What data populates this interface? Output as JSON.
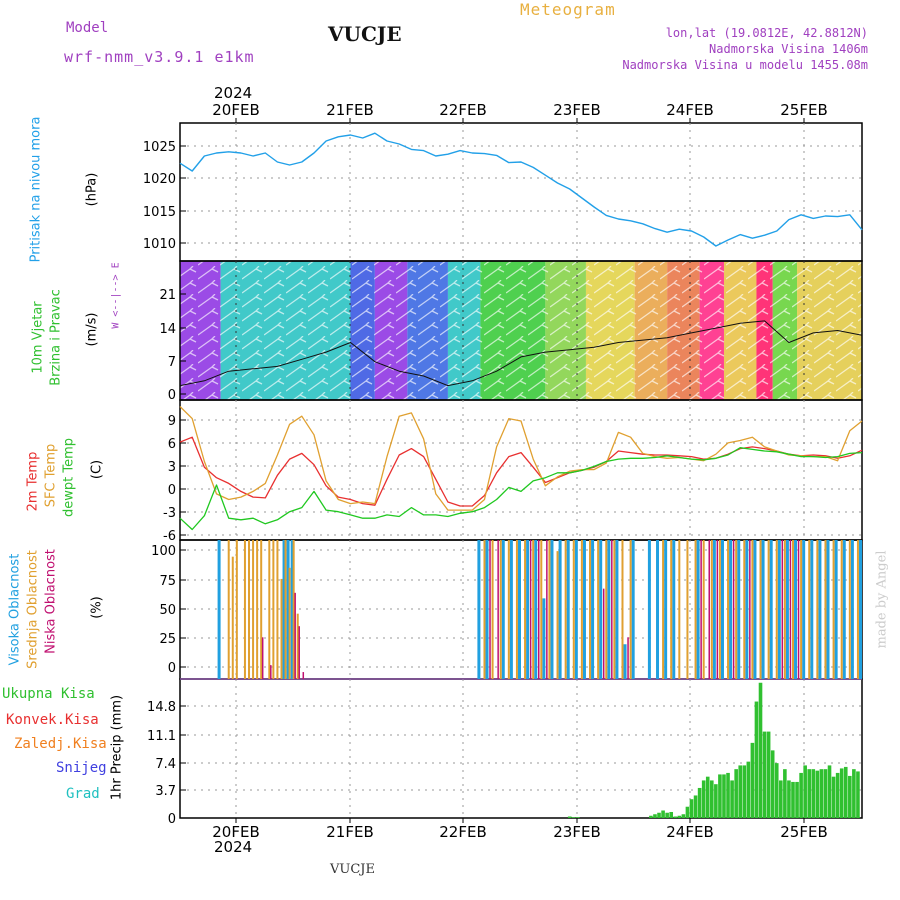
{
  "header": {
    "model_label": "Model",
    "model_name": "wrf-nmm_v3.9.1 e1km",
    "station": "VUCJE",
    "meteogram": "Meteogram",
    "lonlat": "lon,lat (19.0812E, 42.8812N)",
    "elevation": "Nadmorska Visina 1406m",
    "model_elevation": "Nadmorska Visina u modelu 1455.08m",
    "credit": "made by Angel",
    "footer_station": "VUCJE"
  },
  "time_axis": {
    "year": "2024",
    "days": [
      "20FEB",
      "21FEB",
      "22FEB",
      "23FEB",
      "24FEB",
      "25FEB"
    ]
  },
  "panel_labels": {
    "pressure": "Pritisak na nivou mora",
    "pressure_unit": "(hPa)",
    "wind1": "10m Vjetar",
    "wind2": "Brzina i Pravac",
    "wind_unit": "(m/s)",
    "compass": "W <--|--> E",
    "temp1": "2m Temp",
    "temp2": "SFC Temp",
    "temp3": "dewpt Temp",
    "temp_unit": "(C)",
    "cloud1": "Visoka Oblacnost",
    "cloud2": "Srednja Oblacnost",
    "cloud3": "Niska Oblacnost",
    "cloud_unit": "(%)",
    "precip_total": "Ukupna Kisa",
    "precip_conv": "Konvek.Kisa",
    "precip_frz": "Zaledj.Kisa",
    "precip_snow": "Snijeg",
    "precip_grad": "Grad",
    "precip_unit": "1hr Precip (mm)"
  },
  "colors": {
    "pressure": "#22a0e8",
    "temp2m": "#e83030",
    "sfc": "#e0a030",
    "dewpt": "#20c820",
    "cloud_high": "#20a0e0",
    "cloud_mid": "#e0a030",
    "cloud_low": "#c01070",
    "precip": "#30c030",
    "label_green": "#30c030",
    "label_red": "#e83030",
    "label_orange": "#f08020",
    "label_blue": "#4040e0",
    "label_cyan": "#20c0c0",
    "label_purple": "#a040c0",
    "label_gold": "#e8b040"
  },
  "chart_data": [
    {
      "type": "line",
      "name": "pressure",
      "ylim": [
        1006,
        1029
      ],
      "yticks": [
        "1010",
        "1015",
        "1020",
        "1025"
      ],
      "x_hours": [
        0,
        3,
        6,
        9,
        12,
        15,
        18,
        21,
        24,
        27,
        30,
        33,
        36,
        39,
        42,
        45,
        48,
        51,
        54,
        57,
        60,
        63,
        66,
        69,
        72,
        75,
        78,
        81,
        84,
        87,
        90,
        93,
        96,
        99,
        102,
        105,
        108,
        111,
        114,
        117,
        120,
        123,
        126,
        129,
        132,
        135,
        138,
        141,
        144,
        147,
        150,
        153,
        156,
        159,
        162,
        165,
        168
      ],
      "values": [
        1022.3,
        1021,
        1023.5,
        1024,
        1024.2,
        1024,
        1023.5,
        1024,
        1022.5,
        1022,
        1022.5,
        1024,
        1026,
        1026.7,
        1027,
        1026.5,
        1027.3,
        1026,
        1025.5,
        1024.6,
        1024.4,
        1023.5,
        1023.8,
        1024.4,
        1024,
        1023.9,
        1023.6,
        1022.4,
        1022.5,
        1021.6,
        1020.3,
        1019,
        1018,
        1016.5,
        1015,
        1013.6,
        1013,
        1012.7,
        1012.2,
        1011.4,
        1010.8,
        1011.3,
        1011,
        1010,
        1008.5,
        1009.5,
        1010.4,
        1009.8,
        1010.3,
        1011,
        1012.9,
        1013.7,
        1013.1,
        1013.5,
        1013.4,
        1013.7,
        1011.2
      ]
    },
    {
      "type": "line",
      "name": "wind speed",
      "ylim": [
        -1,
        28
      ],
      "yticks": [
        "0",
        "7",
        "14",
        "21"
      ],
      "x_hours": [
        0,
        6,
        12,
        18,
        24,
        30,
        36,
        42,
        48,
        54,
        60,
        66,
        72,
        78,
        84,
        90,
        96,
        102,
        108,
        114,
        120,
        126,
        132,
        138,
        144,
        150,
        156,
        162,
        168
      ],
      "values": [
        2,
        3,
        5,
        5.5,
        6,
        7.5,
        9,
        11,
        7,
        5,
        4,
        2,
        3,
        5,
        8,
        9,
        9.5,
        10,
        11,
        11.5,
        12,
        13,
        14,
        15,
        15.5,
        11,
        13,
        13.5,
        12.5
      ]
    },
    {
      "type": "line",
      "name": "temperature",
      "ylim": [
        -6.5,
        10.8
      ],
      "yticks": [
        "-6",
        "-3",
        "0",
        "3",
        "6",
        "9"
      ],
      "x_hours": [
        0,
        3,
        6,
        9,
        12,
        15,
        18,
        21,
        24,
        27,
        30,
        33,
        36,
        39,
        42,
        45,
        48,
        51,
        54,
        57,
        60,
        63,
        66,
        69,
        72,
        75,
        78,
        81,
        84,
        87,
        90,
        93,
        96,
        99,
        102,
        105,
        108,
        111,
        114,
        117,
        120,
        123,
        126,
        129,
        132,
        135,
        138,
        141,
        144,
        147,
        150,
        153,
        156,
        159,
        162,
        165,
        168
      ],
      "series": [
        {
          "name": "2m Temp",
          "values": [
            5.6,
            6.2,
            2.5,
            1.2,
            0.5,
            -0.5,
            -1.2,
            -1.3,
            1.5,
            3.5,
            4.2,
            2.8,
            0.2,
            -1.2,
            -1.5,
            -2,
            -2.2,
            1,
            4,
            4.8,
            3.8,
            1,
            -1.8,
            -2.3,
            -2.3,
            -1,
            1.8,
            3.8,
            4.3,
            2.5,
            0.6,
            1.2,
            1.8,
            2.1,
            2.5,
            3.2,
            4.5,
            4.3,
            4.1,
            4,
            4,
            3.9,
            3.8,
            3.5,
            3.6,
            4.1,
            4.8,
            5,
            4.8,
            4.5,
            4.1,
            3.9,
            4,
            3.9,
            3.6,
            3.9,
            4.6
          ]
        },
        {
          "name": "SFC Temp",
          "values": [
            10,
            8.5,
            3.2,
            -0.8,
            -1.5,
            -1.2,
            -0.5,
            0.5,
            4,
            7.8,
            8.8,
            6.5,
            0.8,
            -1.5,
            -2,
            -1.8,
            -2,
            3.8,
            8.8,
            9.2,
            6,
            -0.8,
            -2.8,
            -2.8,
            -2.8,
            -1.5,
            5,
            8.5,
            8.2,
            3.5,
            0.2,
            1.3,
            2,
            2.2,
            2.2,
            3,
            6.8,
            6.2,
            4.2,
            3.8,
            3.6,
            3.7,
            3.5,
            3.3,
            4.1,
            5.5,
            5.8,
            6.2,
            5,
            4.5,
            4,
            3.9,
            3.8,
            3.8,
            3.3,
            7,
            8.2
          ]
        },
        {
          "name": "dewpt Temp",
          "values": [
            -3.8,
            -5.2,
            -3.5,
            0.3,
            -3.8,
            -4,
            -3.8,
            -4.5,
            -4,
            -3,
            -2.5,
            -0.5,
            -2.8,
            -3,
            -3.4,
            -3.8,
            -3.8,
            -3.4,
            -3.6,
            -2.5,
            -3.4,
            -3.4,
            -3.6,
            -3.2,
            -3,
            -2.5,
            -1.5,
            0,
            -0.5,
            0.8,
            1.2,
            1.8,
            1.8,
            2.1,
            2.6,
            3.2,
            3.5,
            3.6,
            3.6,
            3.7,
            3.9,
            3.7,
            3.5,
            3.4,
            3.6,
            4,
            4.9,
            4.7,
            4.5,
            4.4,
            4.1,
            3.8,
            3.8,
            3.7,
            3.8,
            4.2,
            4.3
          ]
        }
      ]
    },
    {
      "type": "bar",
      "name": "cloud cover",
      "ylim": [
        0,
        100
      ],
      "yticks": [
        "0",
        "25",
        "50",
        "75",
        "100"
      ],
      "series": [
        {
          "name": "Visoka Oblacnost",
          "x_hours": [
            10,
            26,
            27,
            28,
            74,
            76,
            80,
            82,
            84,
            86,
            88,
            90,
            92,
            94,
            96,
            98,
            100,
            102,
            104,
            106,
            108,
            110,
            112,
            116,
            118,
            120,
            122,
            128,
            132,
            134,
            136,
            138,
            140,
            142,
            144,
            146,
            148,
            150,
            152,
            154,
            156,
            158,
            160,
            162,
            164,
            166,
            168
          ],
          "values": [
            100,
            100,
            100,
            100,
            100,
            100,
            100,
            100,
            100,
            100,
            100,
            58,
            100,
            100,
            100,
            100,
            100,
            100,
            100,
            100,
            100,
            25,
            100,
            100,
            100,
            100,
            100,
            100,
            100,
            100,
            100,
            100,
            100,
            100,
            100,
            100,
            100,
            100,
            100,
            100,
            100,
            100,
            100,
            100,
            100,
            100,
            100
          ]
        },
        {
          "name": "Srednja Oblacnost",
          "x_hours": [
            12,
            13,
            14,
            16,
            17,
            18,
            19,
            20,
            22,
            23,
            24,
            25,
            26,
            27,
            28,
            29,
            75,
            77,
            79,
            81,
            83,
            85,
            87,
            89,
            91,
            93,
            95,
            97,
            99,
            101,
            103,
            105,
            107,
            109,
            111,
            119,
            121,
            123,
            125,
            127,
            129,
            131,
            133,
            135,
            137,
            139,
            141,
            143,
            145,
            147,
            149,
            151,
            153,
            155,
            157,
            159,
            161,
            163,
            165,
            167
          ],
          "values": [
            100,
            88,
            100,
            100,
            100,
            100,
            100,
            100,
            100,
            100,
            100,
            72,
            100,
            80,
            100,
            47,
            100,
            100,
            100,
            100,
            100,
            100,
            100,
            100,
            100,
            92,
            100,
            100,
            100,
            100,
            100,
            100,
            100,
            100,
            100,
            100,
            100,
            100,
            100,
            100,
            100,
            100,
            100,
            100,
            100,
            100,
            100,
            100,
            100,
            100,
            100,
            100,
            100,
            100,
            100,
            100,
            100,
            100,
            100,
            100
          ]
        },
        {
          "name": "Niska Oblacnost",
          "x_hours": [
            20,
            22,
            28,
            29,
            30,
            76,
            78,
            86,
            88,
            90,
            104,
            106,
            110,
            128,
            130,
            132,
            136,
            140,
            148,
            150,
            152
          ],
          "values": [
            30,
            10,
            62,
            38,
            5,
            100,
            100,
            100,
            100,
            100,
            65,
            100,
            30,
            100,
            100,
            100,
            100,
            100,
            100,
            100,
            100
          ]
        }
      ]
    },
    {
      "type": "bar",
      "name": "1hr precipitation",
      "ylim": [
        0,
        18.5
      ],
      "yticks": [
        "0",
        "3.7",
        "7.4",
        "11.1",
        "14.8"
      ],
      "x_hours": [
        96,
        97,
        98,
        116,
        117,
        118,
        119,
        120,
        121,
        122,
        123,
        124,
        125,
        126,
        127,
        128,
        129,
        130,
        131,
        132,
        133,
        134,
        135,
        136,
        137,
        138,
        139,
        140,
        141,
        142,
        143,
        144,
        145,
        146,
        147,
        148,
        149,
        150,
        151,
        152,
        153,
        154,
        155,
        156,
        157,
        158,
        159,
        160,
        161,
        162,
        163,
        164,
        165,
        166,
        167
      ],
      "values": [
        0.2,
        0.1,
        0.1,
        0.3,
        0.5,
        0.7,
        1,
        0.7,
        0.8,
        0.2,
        0.3,
        0.5,
        1.5,
        2.5,
        3,
        4,
        5,
        5.5,
        5,
        4.5,
        5.8,
        5.8,
        6,
        5,
        6.5,
        7,
        7,
        7.5,
        10,
        15.5,
        18,
        11.5,
        11.5,
        9,
        7.3,
        5,
        6.5,
        5,
        4.8,
        4.8,
        6,
        7,
        6.5,
        6.5,
        6.3,
        6.5,
        6.5,
        7,
        5.5,
        6,
        6.6,
        6.8,
        5.6,
        6.5,
        6.2
      ]
    }
  ]
}
